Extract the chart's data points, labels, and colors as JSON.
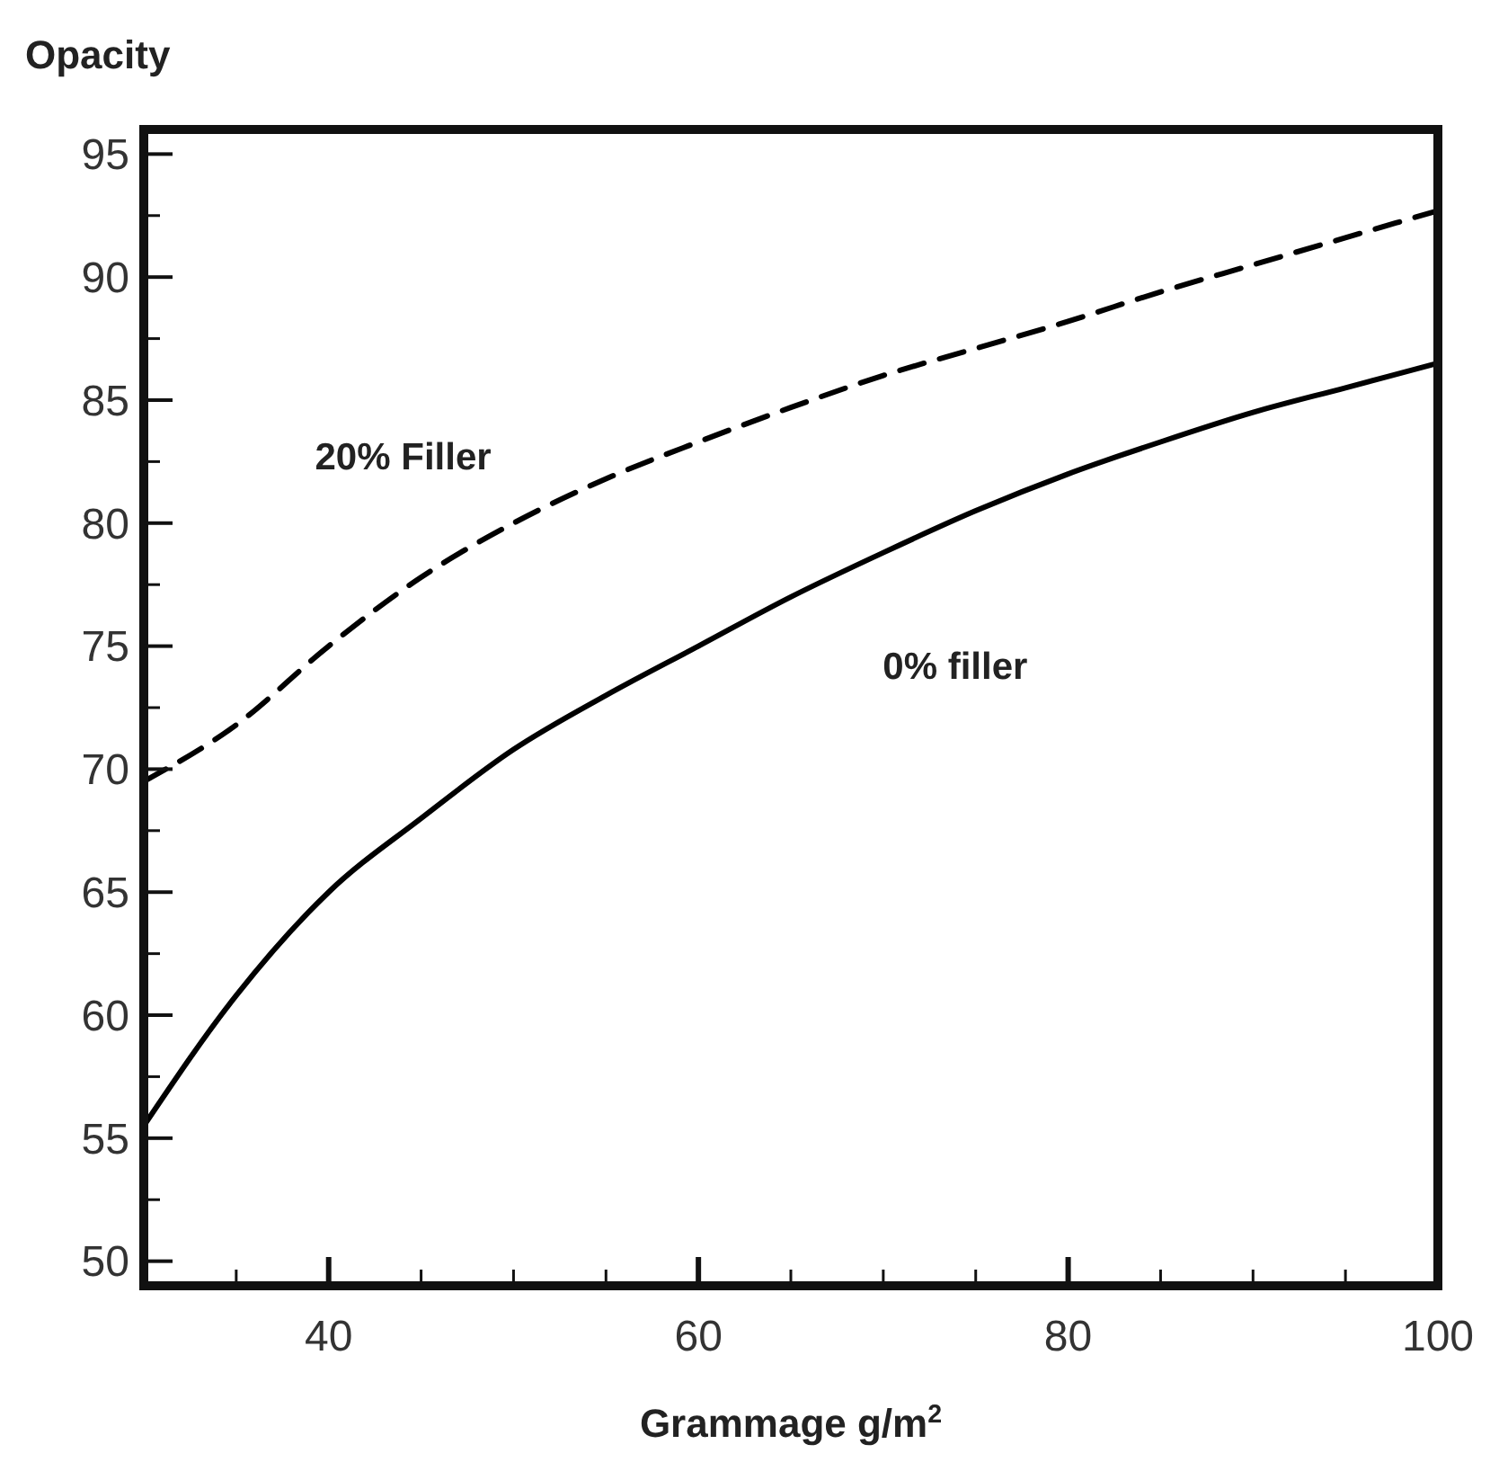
{
  "chart_data": {
    "type": "line",
    "ylabel": "Opacity",
    "xlabel": "Grammage g/m$^{2}$",
    "xlim": [
      30,
      100
    ],
    "ylim": [
      49,
      96
    ],
    "xticks": [
      {
        "value": 35,
        "label": null
      },
      40,
      {
        "value": 45,
        "label": null
      },
      {
        "value": 50,
        "label": null
      },
      {
        "value": 55,
        "label": null
      },
      60,
      {
        "value": 65,
        "label": null
      },
      {
        "value": 70,
        "label": null
      },
      {
        "value": 75,
        "label": null
      },
      80,
      {
        "value": 85,
        "label": null
      },
      {
        "value": 90,
        "label": null
      },
      {
        "value": 95,
        "label": null
      },
      100
    ],
    "yticks": [
      50,
      {
        "value": 52.5,
        "label": null
      },
      55,
      {
        "value": 57.5,
        "label": null
      },
      60,
      {
        "value": 62.5,
        "label": null
      },
      65,
      {
        "value": 67.5,
        "label": null
      },
      70,
      {
        "value": 72.5,
        "label": null
      },
      75,
      {
        "value": 77.5,
        "label": null
      },
      80,
      {
        "value": 82.5,
        "label": null
      },
      85,
      {
        "value": 87.5,
        "label": null
      },
      90,
      {
        "value": 92.5,
        "label": null
      },
      95
    ],
    "grid": false,
    "marker": "none",
    "x": [
      30,
      35,
      40,
      45,
      50,
      55,
      60,
      65,
      70,
      75,
      80,
      85,
      90,
      95,
      100
    ],
    "series": [
      {
        "name": "20% Filler",
        "color": "#000000",
        "line_style": "dashed",
        "values": [
          69.5,
          71.8,
          75,
          77.8,
          80,
          81.8,
          83.3,
          84.7,
          86,
          87.1,
          88.2,
          89.4,
          90.5,
          91.6,
          92.7
        ]
      },
      {
        "name": "0% filler",
        "color": "#000000",
        "line_style": "solid",
        "values": [
          55.5,
          60.8,
          65,
          68,
          70.8,
          73,
          75,
          77,
          78.8,
          80.5,
          82,
          83.3,
          84.5,
          85.5,
          86.5
        ]
      }
    ]
  }
}
